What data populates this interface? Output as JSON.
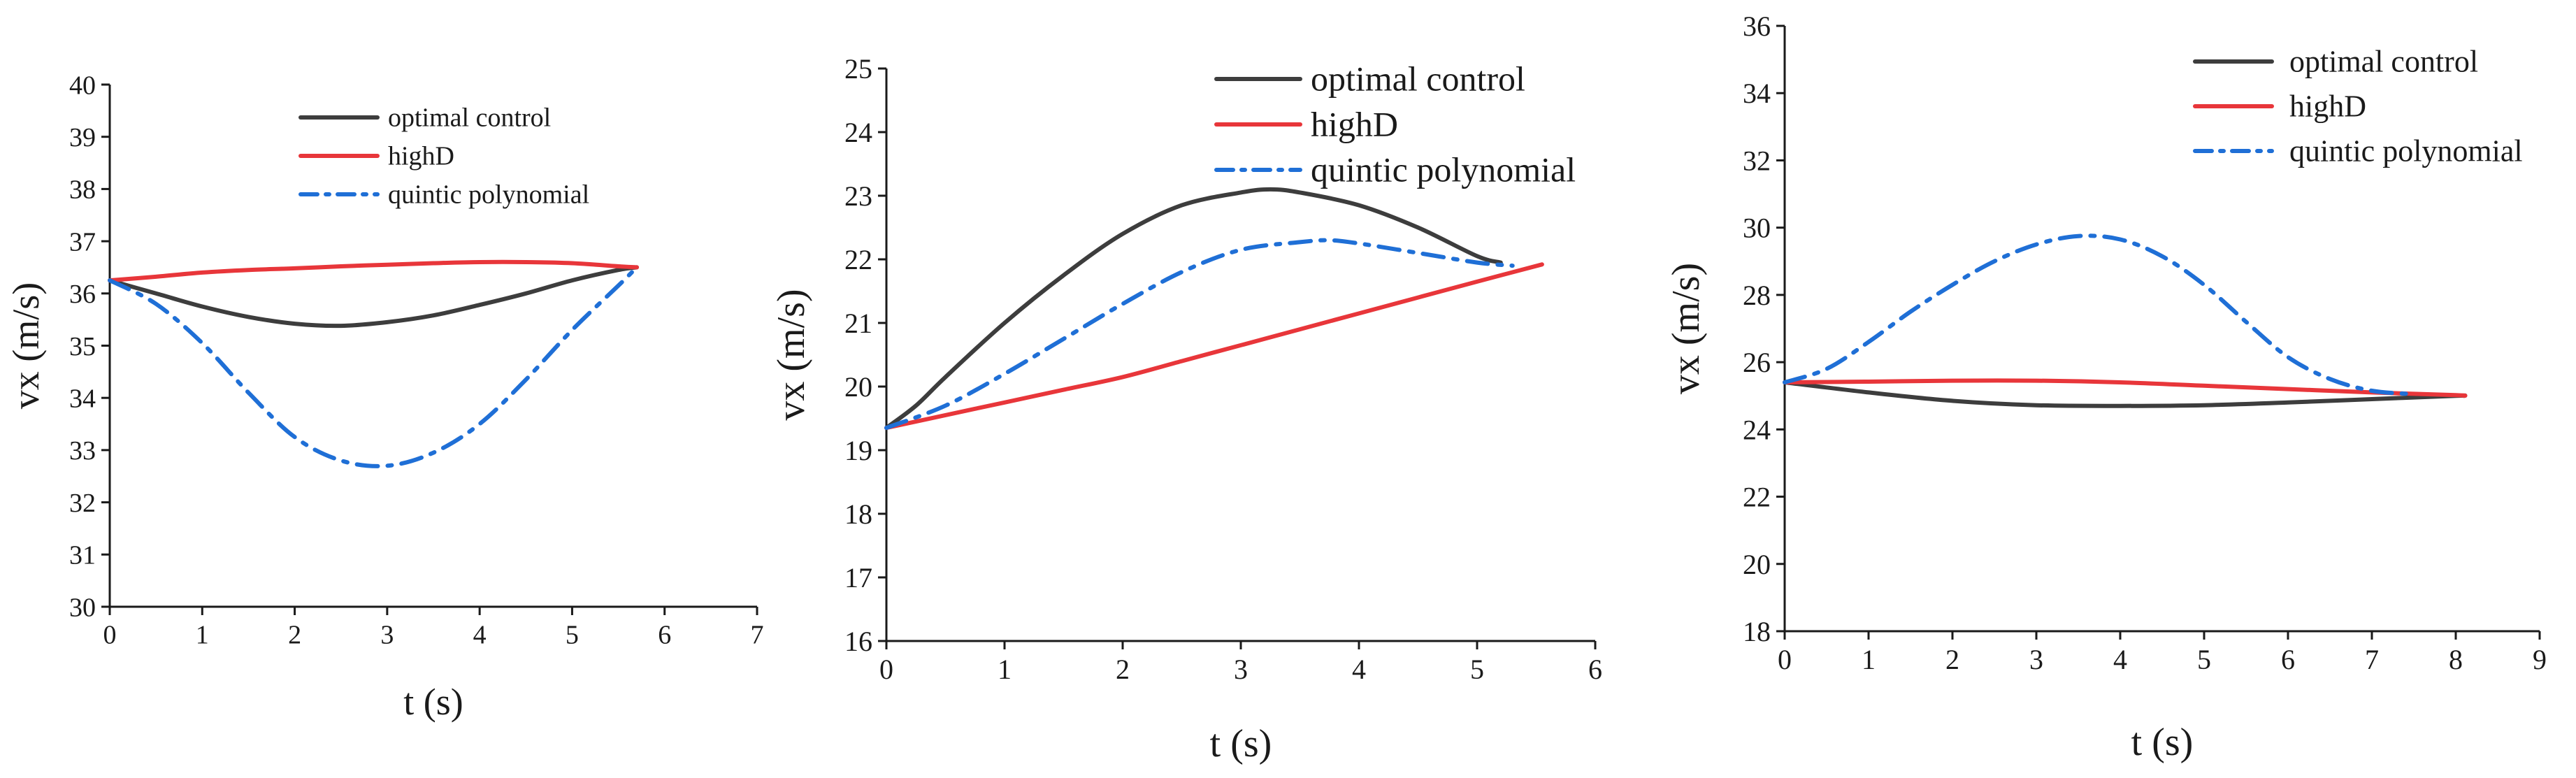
{
  "chart_data": [
    {
      "type": "line",
      "xlabel": "t (s)",
      "ylabel": "vx (m/s)",
      "xlim": [
        0,
        7
      ],
      "ylim": [
        30,
        40
      ],
      "xticks": [
        0,
        1,
        2,
        3,
        4,
        5,
        6,
        7
      ],
      "yticks": [
        30,
        31,
        32,
        33,
        34,
        35,
        36,
        37,
        38,
        39,
        40
      ],
      "grid": false,
      "legend_position": "top-center",
      "series": [
        {
          "name": "optimal control",
          "color": "#3d3d3d",
          "style": "solid",
          "x": [
            0,
            0.5,
            1,
            1.5,
            2,
            2.5,
            3,
            3.5,
            4,
            4.5,
            5,
            5.5,
            5.7
          ],
          "y": [
            36.25,
            36.0,
            35.75,
            35.55,
            35.42,
            35.38,
            35.45,
            35.58,
            35.78,
            36.0,
            36.25,
            36.45,
            36.5
          ]
        },
        {
          "name": "highD",
          "color": "#e8363a",
          "style": "solid",
          "x": [
            0,
            0.5,
            1,
            1.5,
            2,
            2.5,
            3,
            3.5,
            4,
            4.5,
            5,
            5.5,
            5.7
          ],
          "y": [
            36.25,
            36.32,
            36.4,
            36.45,
            36.48,
            36.52,
            36.55,
            36.58,
            36.6,
            36.6,
            36.58,
            36.52,
            36.5
          ]
        },
        {
          "name": "quintic polynomial",
          "color": "#1f6fd6",
          "style": "dashdot",
          "x": [
            0,
            0.5,
            1,
            1.5,
            2,
            2.5,
            3,
            3.5,
            4,
            4.5,
            5,
            5.5,
            5.7
          ],
          "y": [
            36.25,
            35.8,
            35.05,
            34.1,
            33.25,
            32.8,
            32.7,
            32.95,
            33.5,
            34.35,
            35.3,
            36.15,
            36.5
          ]
        }
      ]
    },
    {
      "type": "line",
      "xlabel": "t (s)",
      "ylabel": "vx (m/s)",
      "xlim": [
        0,
        6
      ],
      "ylim": [
        16,
        25
      ],
      "xticks": [
        0,
        1,
        2,
        3,
        4,
        5,
        6
      ],
      "yticks": [
        16,
        17,
        18,
        19,
        20,
        21,
        22,
        23,
        24,
        25
      ],
      "grid": false,
      "legend_position": "top-right",
      "series": [
        {
          "name": "optimal control",
          "color": "#3d3d3d",
          "style": "solid",
          "x": [
            0,
            0.25,
            0.5,
            1,
            1.5,
            2,
            2.5,
            3,
            3.25,
            3.5,
            4,
            4.5,
            5,
            5.2
          ],
          "y": [
            19.35,
            19.7,
            20.15,
            21.0,
            21.75,
            22.4,
            22.85,
            23.05,
            23.1,
            23.05,
            22.85,
            22.5,
            22.05,
            21.95
          ]
        },
        {
          "name": "highD",
          "color": "#e8363a",
          "style": "solid",
          "x": [
            0,
            0.5,
            1,
            1.5,
            2,
            2.5,
            3,
            3.5,
            4,
            4.5,
            5,
            5.55
          ],
          "y": [
            19.35,
            19.55,
            19.75,
            19.95,
            20.15,
            20.4,
            20.65,
            20.9,
            21.15,
            21.4,
            21.65,
            21.92
          ]
        },
        {
          "name": "quintic polynomial",
          "color": "#1f6fd6",
          "style": "dashdot",
          "x": [
            0,
            0.5,
            1,
            1.5,
            2,
            2.5,
            3,
            3.5,
            3.75,
            4,
            4.5,
            5,
            5.3
          ],
          "y": [
            19.35,
            19.7,
            20.2,
            20.75,
            21.3,
            21.8,
            22.15,
            22.27,
            22.3,
            22.25,
            22.1,
            21.95,
            21.9
          ]
        }
      ]
    },
    {
      "type": "line",
      "xlabel": "t (s)",
      "ylabel": "vx (m/s)",
      "xlim": [
        0,
        9
      ],
      "ylim": [
        18,
        36
      ],
      "xticks": [
        0,
        1,
        2,
        3,
        4,
        5,
        6,
        7,
        8,
        9
      ],
      "yticks": [
        18,
        20,
        22,
        24,
        26,
        28,
        30,
        32,
        34,
        36
      ],
      "grid": false,
      "legend_position": "top-right",
      "series": [
        {
          "name": "optimal control",
          "color": "#3d3d3d",
          "style": "solid",
          "x": [
            0,
            1,
            2,
            3,
            4,
            5,
            6,
            7,
            8,
            8.1
          ],
          "y": [
            25.4,
            25.1,
            24.85,
            24.72,
            24.7,
            24.72,
            24.8,
            24.9,
            25.0,
            25.0
          ]
        },
        {
          "name": "highD",
          "color": "#e8363a",
          "style": "solid",
          "x": [
            0,
            1,
            2,
            3,
            4,
            5,
            6,
            7,
            8,
            8.1
          ],
          "y": [
            25.4,
            25.42,
            25.45,
            25.45,
            25.4,
            25.3,
            25.2,
            25.1,
            25.02,
            25.0
          ]
        },
        {
          "name": "quintic polynomial",
          "color": "#1f6fd6",
          "style": "dashdot",
          "x": [
            0,
            0.5,
            1,
            1.5,
            2,
            2.5,
            3,
            3.5,
            4,
            4.5,
            5,
            5.5,
            6,
            6.5,
            7,
            7.5
          ],
          "y": [
            25.4,
            25.8,
            26.6,
            27.5,
            28.3,
            29.0,
            29.5,
            29.75,
            29.65,
            29.15,
            28.3,
            27.2,
            26.15,
            25.5,
            25.15,
            25.05
          ]
        }
      ]
    }
  ]
}
